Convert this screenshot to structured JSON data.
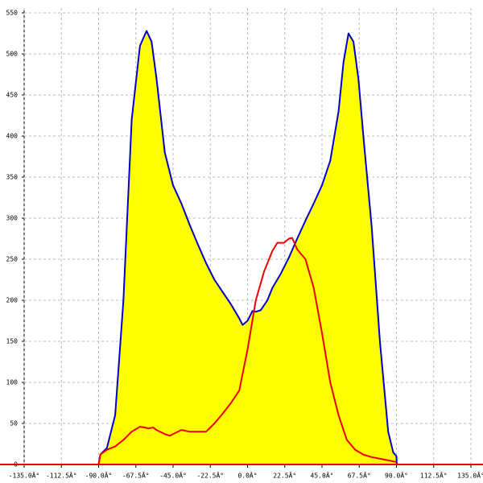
{
  "chart_data": {
    "type": "line",
    "xlim": [
      -135,
      135
    ],
    "ylim": [
      0,
      550
    ],
    "xticks": [
      {
        "value": -135,
        "label": "-135.0Â°"
      },
      {
        "value": -112.5,
        "label": "-112.5Â°"
      },
      {
        "value": -90,
        "label": "-90.0Â°"
      },
      {
        "value": -67.5,
        "label": "-67.5Â°"
      },
      {
        "value": -45,
        "label": "-45.0Â°"
      },
      {
        "value": -22.5,
        "label": "-22.5Â°"
      },
      {
        "value": 0,
        "label": "0.0Â°"
      },
      {
        "value": 22.5,
        "label": "22.5Â°"
      },
      {
        "value": 45,
        "label": "45.0Â°"
      },
      {
        "value": 67.5,
        "label": "67.5Â°"
      },
      {
        "value": 90,
        "label": "90.0Â°"
      },
      {
        "value": 112.5,
        "label": "112.5Â°"
      },
      {
        "value": 135,
        "label": "135.0Â°"
      }
    ],
    "yticks": [
      0,
      50,
      100,
      150,
      200,
      250,
      300,
      350,
      400,
      450,
      500,
      550
    ],
    "grid": true,
    "series": [
      {
        "color": "#0000cc",
        "fill": "#ffff00",
        "x": [
          -90,
          -89,
          -85,
          -80,
          -75,
          -70,
          -65,
          -61,
          -58,
          -55,
          -50,
          -45,
          -40,
          -35,
          -30,
          -25,
          -20,
          -15,
          -10,
          -5,
          -3,
          0,
          3,
          5,
          8,
          12,
          15,
          20,
          25,
          30,
          35,
          40,
          45,
          50,
          55,
          58,
          61,
          64,
          67,
          70,
          75,
          80,
          85,
          88,
          90,
          90.2
        ],
        "values": [
          0,
          12,
          20,
          60,
          200,
          420,
          510,
          528,
          515,
          470,
          380,
          340,
          318,
          292,
          268,
          245,
          225,
          210,
          195,
          178,
          170,
          175,
          187,
          186,
          188,
          200,
          215,
          232,
          252,
          275,
          297,
          318,
          340,
          370,
          430,
          490,
          525,
          515,
          470,
          400,
          290,
          150,
          40,
          15,
          10,
          0
        ]
      },
      {
        "color": "#ee0000",
        "x": [
          -90,
          -89,
          -85,
          -80,
          -75,
          -70,
          -65,
          -62,
          -60,
          -57,
          -55,
          -50,
          -47,
          -45,
          -40,
          -35,
          -30,
          -25,
          -20,
          -15,
          -10,
          -5,
          0,
          5,
          10,
          15,
          18,
          22,
          25,
          27,
          30,
          35,
          40,
          45,
          50,
          55,
          60,
          65,
          70,
          75,
          80,
          85,
          90
        ],
        "values": [
          0,
          12,
          18,
          22,
          30,
          40,
          46,
          45,
          44,
          45,
          42,
          37,
          35,
          37,
          42,
          40,
          40,
          40,
          50,
          62,
          75,
          90,
          140,
          200,
          235,
          260,
          270,
          270,
          275,
          276,
          262,
          250,
          215,
          160,
          100,
          60,
          30,
          18,
          12,
          9,
          7,
          5,
          3
        ]
      }
    ]
  }
}
